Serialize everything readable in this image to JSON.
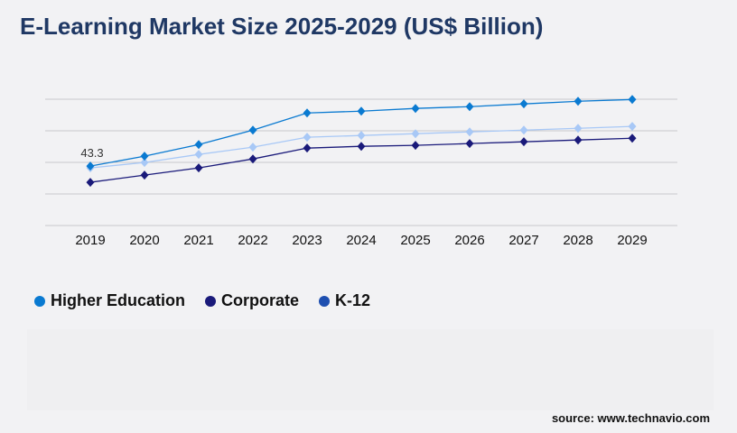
{
  "title": "E-Learning Market Size 2025-2029 (US$ Billion)",
  "source": "source: www.technavio.com",
  "chart_data": {
    "type": "line",
    "title": "E-Learning Market Size 2025-2029 (US$ Billion)",
    "xlabel": "",
    "ylabel": "",
    "categories": [
      "2019",
      "2020",
      "2021",
      "2022",
      "2023",
      "2024",
      "2025",
      "2026",
      "2027",
      "2028",
      "2029"
    ],
    "ylim": [
      0,
      92
    ],
    "grid": true,
    "legend_position": "bottom-left",
    "annotations": [
      {
        "series": "Higher Education",
        "category": "2019",
        "text": "43.3"
      }
    ],
    "series": [
      {
        "name": "Higher Education",
        "color": "#0a7ad1",
        "legend_color": "#0a7ad1",
        "values": [
          43.3,
          50.5,
          59.0,
          69.5,
          82.0,
          83.3,
          85.3,
          86.6,
          88.6,
          90.5,
          91.8
        ]
      },
      {
        "name": "Corporate",
        "color": "#1a1a7a",
        "legend_color": "#1a1a7a",
        "values": [
          31.5,
          36.7,
          42.0,
          48.5,
          56.4,
          57.7,
          58.4,
          59.7,
          61.0,
          62.3,
          63.6
        ]
      },
      {
        "name": "K-12",
        "color": "#a8c8f6",
        "legend_color": "#1e4fb0",
        "values": [
          42.0,
          45.9,
          51.8,
          57.1,
          64.3,
          65.6,
          66.9,
          68.2,
          69.5,
          70.8,
          72.2
        ]
      }
    ]
  }
}
